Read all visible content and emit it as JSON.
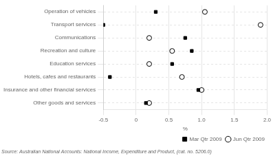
{
  "chart_data": {
    "type": "scatter",
    "categories": [
      "Operation of vehicles",
      "Transport services",
      "Communications",
      "Recreation and culture",
      "Education services",
      "Hotels, cafes and restaurants",
      "Insurance and other financial services",
      "Other goods and services"
    ],
    "series": [
      {
        "name": "Mar Qtr 2009",
        "values": [
          0.3,
          -0.5,
          0.75,
          0.85,
          0.55,
          -0.4,
          0.95,
          0.15
        ],
        "color": "#000000",
        "marker": "square"
      },
      {
        "name": "Jun Qtr 2009",
        "values": [
          1.05,
          1.9,
          0.2,
          0.55,
          0.2,
          0.7,
          1.0,
          0.2
        ],
        "color": "#000000",
        "marker": "open_circle"
      }
    ],
    "xlabel": "%",
    "xlim": [
      -0.5,
      2.0
    ],
    "xticks": [
      -0.5,
      0,
      0.5,
      {
        "value": 1.0,
        "label": "1.0"
      },
      1.5,
      {
        "value": 2.0,
        "label": "2.0"
      }
    ],
    "grid": true,
    "legend": "lower right",
    "annotations": [
      "Source: Australian National Accounts: National Income, Expenditure and Product, (cat. no. 5206.0)"
    ]
  }
}
